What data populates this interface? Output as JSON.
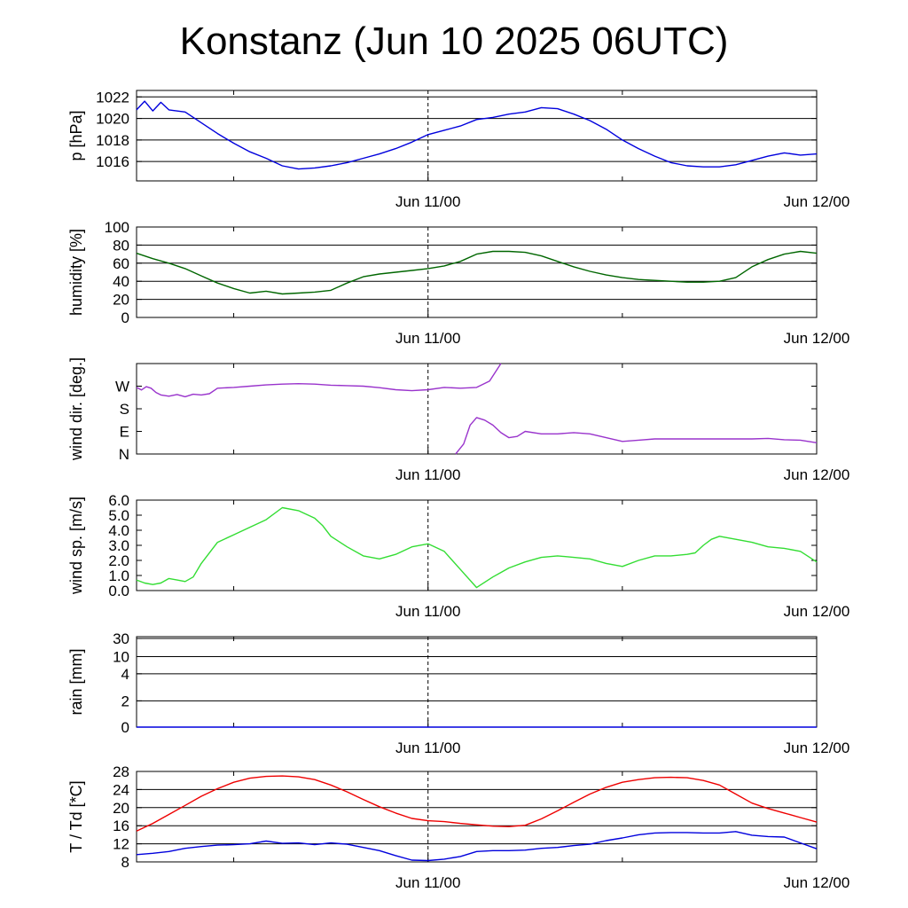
{
  "title": "Konstanz (Jun 10 2025 06UTC)",
  "chart_data": [
    {
      "type": "line",
      "ylabel": "p [hPa]",
      "ylim": [
        1014.2,
        1022.6
      ],
      "yticks": [
        1016,
        1018,
        1020,
        1022
      ],
      "tick_labels": [
        "1016",
        "1018",
        "1020",
        "1022"
      ],
      "hgrid": [
        1016,
        1018,
        1020,
        1022
      ],
      "grid": true,
      "x_tick_labels": [
        "Jun 11/00",
        "Jun 12/00"
      ],
      "series": [
        {
          "color": "#0000dd",
          "x": [
            0,
            0.5,
            1,
            1.5,
            2,
            3,
            4,
            5,
            6,
            7,
            8,
            9,
            10,
            11,
            12,
            13,
            14,
            15,
            16,
            17,
            18,
            19,
            20,
            21,
            22,
            23,
            24,
            25,
            26,
            27,
            28,
            29,
            30,
            31,
            32,
            33,
            34,
            35,
            36,
            37,
            38,
            39,
            40,
            41,
            42
          ],
          "y": [
            1020.8,
            1021.6,
            1020.7,
            1021.5,
            1020.8,
            1020.6,
            1019.6,
            1018.6,
            1017.7,
            1016.9,
            1016.3,
            1015.6,
            1015.3,
            1015.4,
            1015.6,
            1015.9,
            1016.3,
            1016.7,
            1017.2,
            1017.8,
            1018.5,
            1018.9,
            1019.3,
            1019.9,
            1020.1,
            1020.4,
            1020.6,
            1021.0,
            1020.9,
            1020.4,
            1019.8,
            1019.0,
            1018.0,
            1017.2,
            1016.5,
            1015.9,
            1015.6,
            1015.5,
            1015.5,
            1015.7,
            1016.1,
            1016.5,
            1016.8,
            1016.6,
            1016.7
          ]
        }
      ]
    },
    {
      "type": "line",
      "ylabel": "humidity [%]",
      "ylim": [
        0,
        100
      ],
      "yticks": [
        0,
        20,
        40,
        60,
        80,
        100
      ],
      "tick_labels": [
        "0",
        "20",
        "40",
        "60",
        "80",
        "100"
      ],
      "hgrid": [
        20,
        40,
        60,
        80
      ],
      "grid": true,
      "x_tick_labels": [
        "Jun 11/00",
        "Jun 12/00"
      ],
      "series": [
        {
          "color": "#006600",
          "x": [
            0,
            1,
            2,
            3,
            4,
            5,
            6,
            7,
            8,
            9,
            10,
            11,
            12,
            13,
            14,
            15,
            16,
            17,
            18,
            19,
            20,
            21,
            22,
            23,
            24,
            25,
            26,
            27,
            28,
            29,
            30,
            31,
            32,
            33,
            34,
            35,
            36,
            37,
            38,
            39,
            40,
            41,
            42
          ],
          "y": [
            71,
            65,
            60,
            54,
            46,
            38,
            32,
            27,
            29,
            26,
            27,
            28,
            30,
            38,
            45,
            48,
            50,
            52,
            54,
            57,
            62,
            70,
            73,
            73,
            72,
            68,
            62,
            56,
            51,
            47,
            44,
            42,
            41,
            40,
            39,
            39,
            40,
            44,
            56,
            64,
            70,
            73,
            71
          ]
        }
      ]
    },
    {
      "type": "line",
      "ylabel": "wind dir. [deg.]",
      "ylim": [
        0,
        360
      ],
      "yticks": [
        0,
        90,
        180,
        270
      ],
      "tick_labels": [
        "N",
        "E",
        "S",
        "W"
      ],
      "grid": false,
      "x_tick_labels": [
        "Jun 11/00",
        "Jun 12/00"
      ],
      "series": [
        {
          "color": "#9933cc",
          "x": [
            0,
            0.3,
            0.6,
            0.9,
            1.2,
            1.5,
            2,
            2.5,
            3,
            3.5,
            4,
            4.5,
            5,
            6,
            7,
            8,
            9,
            10,
            11,
            12,
            13,
            14,
            15,
            16,
            17,
            18,
            19,
            20,
            21,
            21.8,
            22.5
          ],
          "y": [
            265,
            255,
            268,
            262,
            245,
            235,
            230,
            237,
            228,
            238,
            235,
            240,
            262,
            265,
            270,
            275,
            278,
            280,
            278,
            274,
            272,
            270,
            264,
            256,
            252,
            256,
            265,
            262,
            265,
            290,
            360
          ]
        },
        {
          "color": "#9933cc",
          "x": [
            19.7,
            20.2,
            20.6,
            21,
            21.5,
            22,
            22.5,
            23,
            23.5,
            24,
            25,
            26,
            27,
            28,
            29,
            30,
            31,
            32,
            33,
            34,
            35,
            36,
            37,
            38,
            39,
            40,
            41,
            42
          ],
          "y": [
            0,
            40,
            115,
            145,
            135,
            115,
            85,
            65,
            70,
            90,
            80,
            80,
            85,
            80,
            65,
            50,
            55,
            60,
            60,
            60,
            60,
            60,
            60,
            60,
            62,
            57,
            55,
            45
          ]
        }
      ]
    },
    {
      "type": "line",
      "ylabel": "wind sp. [m/s]",
      "ylim": [
        0,
        6
      ],
      "yticks": [
        0,
        1,
        2,
        3,
        4,
        5,
        6
      ],
      "tick_labels": [
        "0.0",
        "1.0",
        "2.0",
        "3.0",
        "4.0",
        "5.0",
        "6.0"
      ],
      "grid": false,
      "x_tick_labels": [
        "Jun 11/00",
        "Jun 12/00"
      ],
      "series": [
        {
          "color": "#33dd33",
          "x": [
            0,
            0.5,
            1,
            1.5,
            2,
            2.5,
            3,
            3.5,
            4,
            5,
            6,
            7,
            8,
            9,
            10,
            11,
            11.5,
            12,
            13,
            14,
            15,
            16,
            17,
            18,
            19,
            20,
            21,
            22,
            22.5,
            23,
            24,
            25,
            26,
            27,
            28,
            29,
            30,
            31,
            32,
            33,
            34,
            34.5,
            35,
            35.5,
            36,
            37,
            38,
            39,
            40,
            41,
            42
          ],
          "y": [
            0.7,
            0.5,
            0.4,
            0.5,
            0.8,
            0.7,
            0.6,
            0.9,
            1.8,
            3.2,
            3.7,
            4.2,
            4.7,
            5.5,
            5.3,
            4.8,
            4.3,
            3.6,
            2.9,
            2.3,
            2.1,
            2.4,
            2.9,
            3.1,
            2.6,
            1.4,
            0.2,
            0.9,
            1.2,
            1.5,
            1.9,
            2.2,
            2.3,
            2.2,
            2.1,
            1.8,
            1.6,
            2.0,
            2.3,
            2.3,
            2.4,
            2.5,
            3.0,
            3.4,
            3.6,
            3.4,
            3.2,
            2.9,
            2.8,
            2.6,
            1.9
          ]
        }
      ]
    },
    {
      "type": "line",
      "ylabel": "rain [mm]",
      "ylim": [
        0,
        30
      ],
      "yticks": [
        0,
        2,
        4,
        10,
        30
      ],
      "tick_labels": [
        "0",
        "2",
        "4",
        "10",
        "30"
      ],
      "tick_positions": [
        0,
        0.29,
        0.59,
        0.78,
        0.98
      ],
      "hgrid": [
        2,
        4,
        10,
        30
      ],
      "grid": true,
      "x_tick_labels": [
        "Jun 11/00",
        "Jun 12/00"
      ],
      "series": [
        {
          "color": "#0000dd",
          "x": [
            0,
            42
          ],
          "y": [
            0,
            0
          ]
        }
      ]
    },
    {
      "type": "line",
      "ylabel": "T / Td [*C]",
      "ylim": [
        8,
        28
      ],
      "yticks": [
        8,
        12,
        16,
        20,
        24,
        28
      ],
      "tick_labels": [
        "8",
        "12",
        "16",
        "20",
        "24",
        "28"
      ],
      "hgrid": [
        12,
        16,
        20,
        24,
        28
      ],
      "grid": true,
      "x_tick_labels": [
        "Jun 11/00",
        "Jun 12/00"
      ],
      "series": [
        {
          "color": "#ee0000",
          "x": [
            0,
            1,
            2,
            3,
            4,
            5,
            6,
            7,
            8,
            9,
            10,
            11,
            12,
            13,
            14,
            15,
            16,
            17,
            18,
            19,
            20,
            21,
            22,
            23,
            24,
            25,
            26,
            27,
            28,
            29,
            30,
            31,
            32,
            33,
            34,
            35,
            36,
            37,
            38,
            39,
            40,
            41,
            42
          ],
          "y": [
            14.8,
            16.5,
            18.5,
            20.5,
            22.5,
            24.2,
            25.6,
            26.5,
            26.9,
            27.0,
            26.8,
            26.2,
            25.0,
            23.5,
            21.8,
            20.2,
            18.8,
            17.6,
            17.1,
            16.9,
            16.5,
            16.2,
            15.9,
            15.8,
            16.1,
            17.5,
            19.3,
            21.2,
            23.0,
            24.5,
            25.6,
            26.2,
            26.6,
            26.7,
            26.6,
            26.0,
            25.0,
            23.0,
            21.0,
            19.8,
            18.8,
            17.8,
            16.8
          ]
        },
        {
          "color": "#0000dd",
          "x": [
            0,
            1,
            2,
            3,
            4,
            5,
            6,
            7,
            8,
            9,
            10,
            11,
            12,
            13,
            14,
            15,
            16,
            17,
            18,
            19,
            20,
            21,
            22,
            23,
            24,
            25,
            26,
            27,
            28,
            29,
            30,
            31,
            32,
            33,
            34,
            35,
            36,
            37,
            38,
            39,
            40,
            41,
            42
          ],
          "y": [
            9.6,
            9.9,
            10.3,
            11.0,
            11.4,
            11.7,
            11.8,
            12.0,
            12.6,
            12.1,
            12.2,
            11.8,
            12.2,
            11.9,
            11.2,
            10.5,
            9.4,
            8.4,
            8.3,
            8.6,
            9.2,
            10.3,
            10.5,
            10.5,
            10.6,
            11.0,
            11.2,
            11.6,
            11.9,
            12.7,
            13.3,
            14.0,
            14.4,
            14.5,
            14.5,
            14.4,
            14.4,
            14.7,
            13.9,
            13.6,
            13.5,
            12.2,
            10.9
          ]
        }
      ]
    }
  ]
}
